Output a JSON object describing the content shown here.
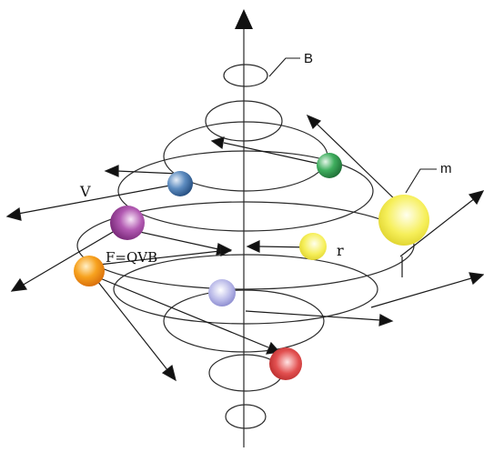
{
  "labels": {
    "field": "B",
    "mass": "m",
    "velocity": "V",
    "force": "F=QVB",
    "radius": "r"
  },
  "colors": {
    "line": "#2a2a2a",
    "arrow": "#111111",
    "sphere_blue": "#3d6fa8",
    "sphere_green": "#2f9e4e",
    "sphere_purple": "#9b3c9b",
    "sphere_yellow_large": "#f4ec4a",
    "sphere_yellow_small": "#f2ee3c",
    "sphere_orange": "#f39a12",
    "sphere_lavender": "#9a9ad6",
    "sphere_red": "#d83a3a"
  }
}
